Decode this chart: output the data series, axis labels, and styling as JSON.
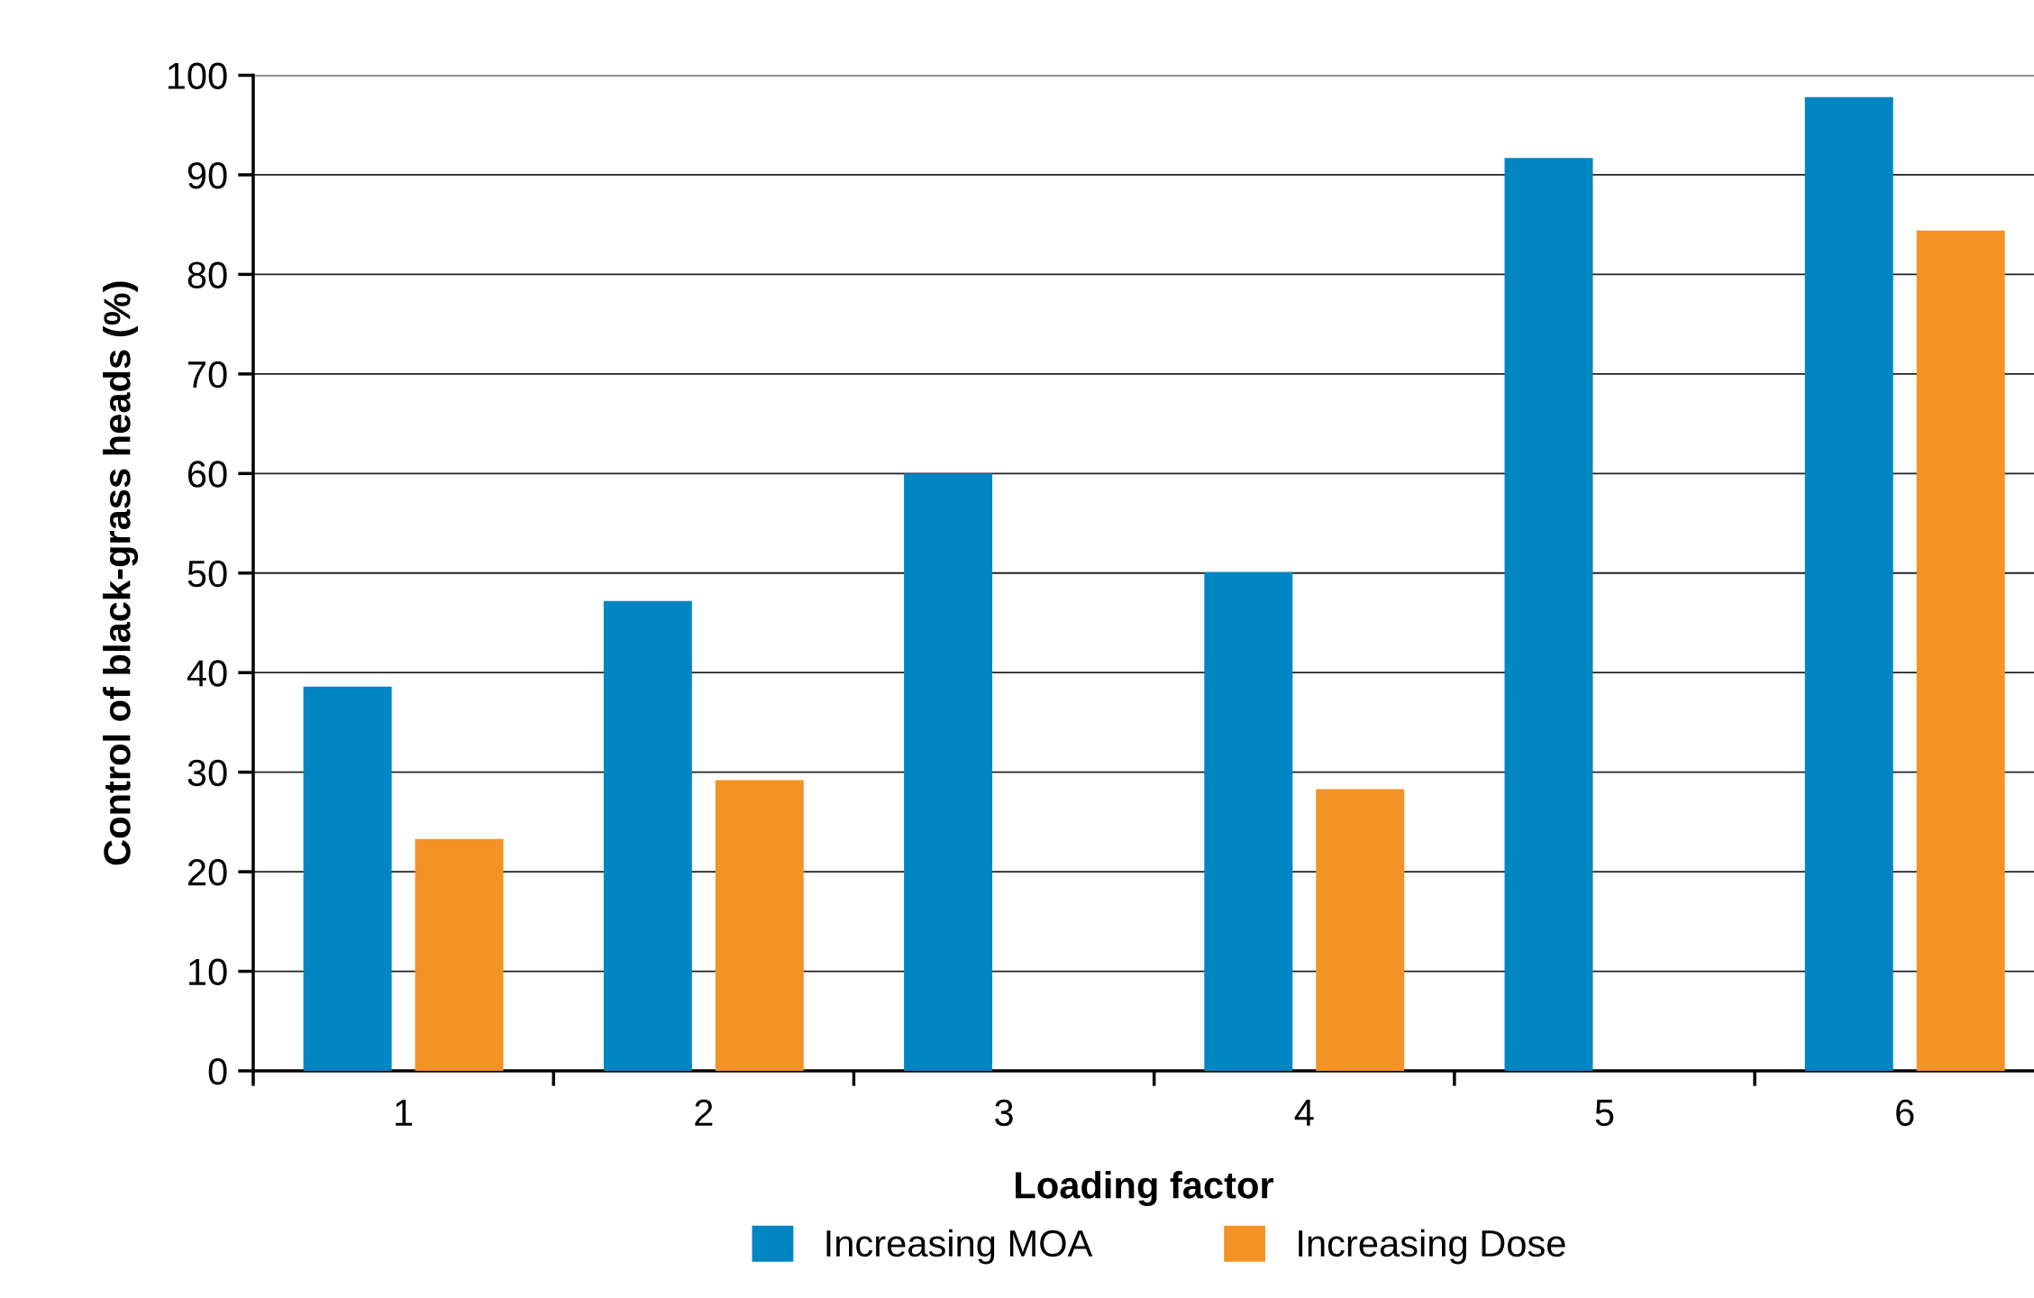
{
  "chart_data": {
    "type": "bar",
    "xlabel": "Loading factor",
    "ylabel": "Control of black-grass heads (%)",
    "categories": [
      "1",
      "2",
      "3",
      "4",
      "5",
      "6"
    ],
    "series": [
      {
        "name": "Increasing MOA",
        "color": "#0086c3",
        "values": [
          38.6,
          47.2,
          60.0,
          50.1,
          91.7,
          97.8
        ]
      },
      {
        "name": "Increasing Dose",
        "color": "#f39325",
        "values": [
          23.3,
          29.2,
          null,
          28.3,
          null,
          84.4
        ]
      }
    ],
    "ylim": [
      0,
      100
    ],
    "yticks": [
      0,
      10,
      20,
      30,
      40,
      50,
      60,
      70,
      80,
      90,
      100
    ],
    "grid": "y",
    "legend": "bottom"
  }
}
